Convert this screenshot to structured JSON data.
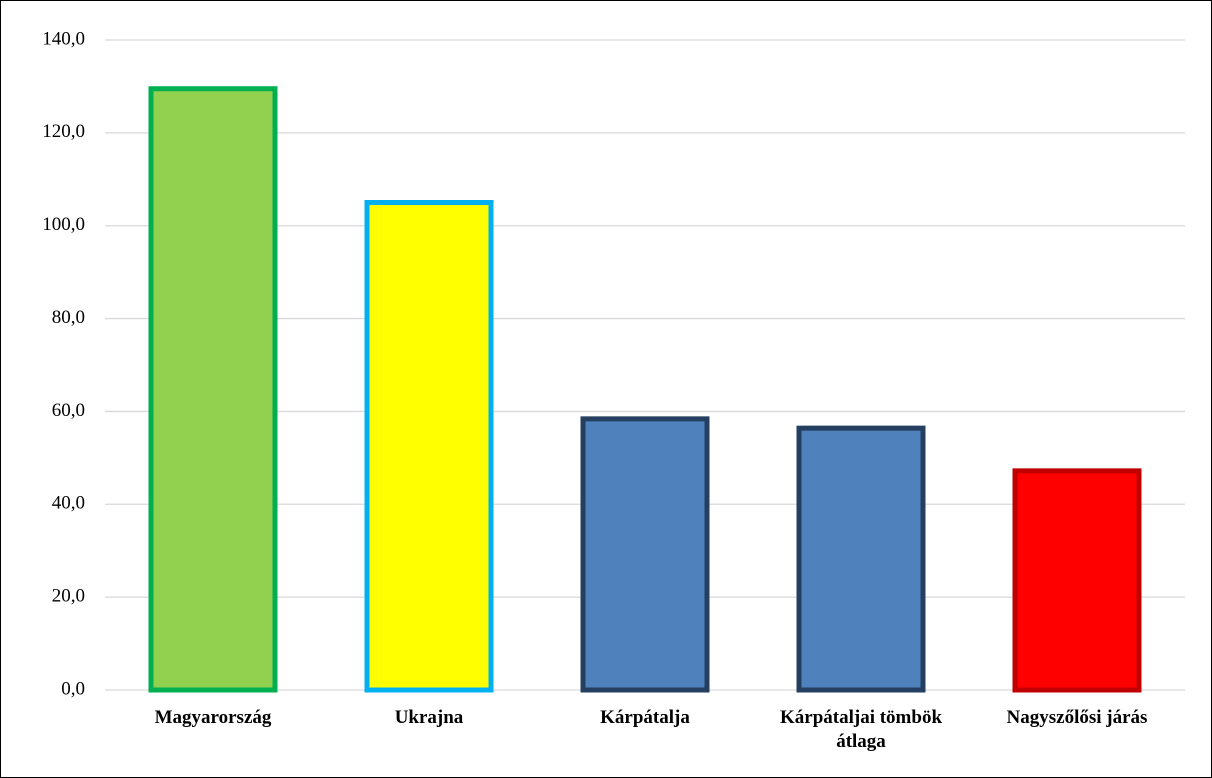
{
  "chart_data": {
    "type": "bar",
    "categories": [
      "Magyarország",
      "Ukrajna",
      "Kárpátalja",
      "Kárpátaljai tömbök átlaga",
      "Nagyszőlősi járás"
    ],
    "values": [
      129.5,
      105,
      58.4,
      56.4,
      47.2
    ],
    "colors": [
      "#92d050",
      "#ffff00",
      "#4f81bd",
      "#4f81bd",
      "#ff0000"
    ],
    "edge_colors": [
      "#00b050",
      "#00b0f0",
      "#243f60",
      "#243f60",
      "#c00000"
    ],
    "ylim": [
      0,
      140
    ],
    "yticks": [
      {
        "value": 0,
        "label": "0,0"
      },
      {
        "value": 20,
        "label": "20,0"
      },
      {
        "value": 40,
        "label": "40,0"
      },
      {
        "value": 60,
        "label": "60,0"
      },
      {
        "value": 80,
        "label": "80,0"
      },
      {
        "value": 100,
        "label": "100,0"
      },
      {
        "value": 120,
        "label": "120,0"
      },
      {
        "value": 140,
        "label": "140,0"
      }
    ],
    "grid": true
  }
}
